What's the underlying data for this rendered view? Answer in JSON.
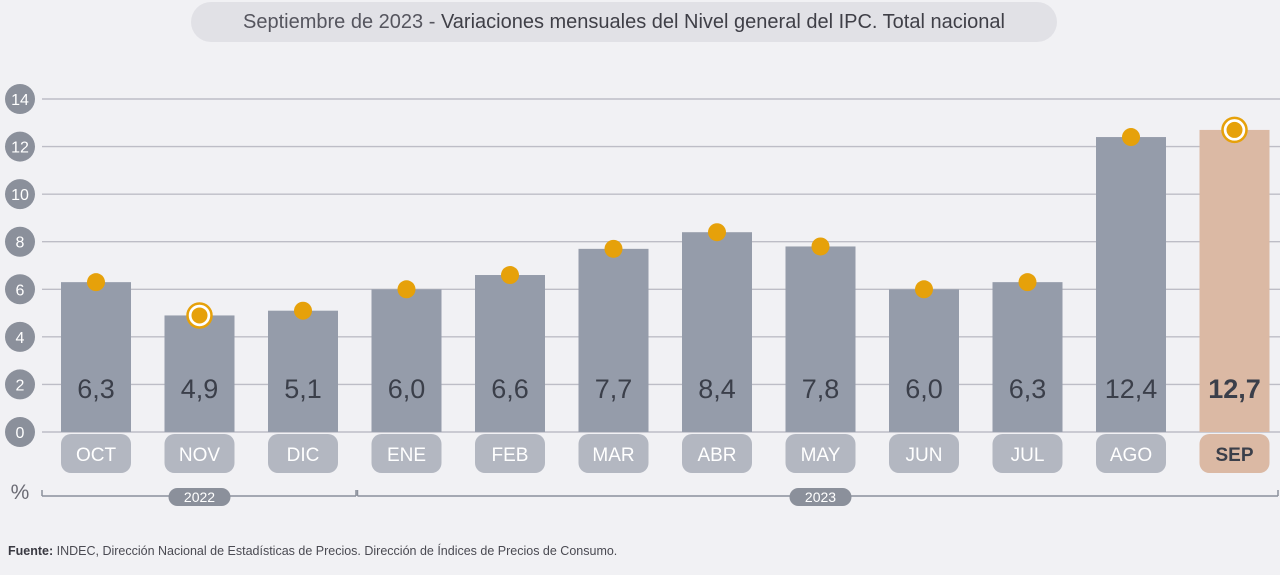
{
  "header": {
    "date_label": "Septiembre de 2023",
    "separator": " - ",
    "title": "Variaciones mensuales del Nivel general del IPC. Total nacional"
  },
  "chart_data": {
    "type": "bar",
    "categories": [
      "OCT",
      "NOV",
      "DIC",
      "ENE",
      "FEB",
      "MAR",
      "ABR",
      "MAY",
      "JUN",
      "JUL",
      "AGO",
      "SEP"
    ],
    "values": [
      6.3,
      4.9,
      5.1,
      6.0,
      6.6,
      7.7,
      8.4,
      7.8,
      6.0,
      6.3,
      12.4,
      12.7
    ],
    "value_labels": [
      "6,3",
      "4,9",
      "5,1",
      "6,0",
      "6,6",
      "7,7",
      "8,4",
      "7,8",
      "6,0",
      "6,3",
      "12,4",
      "12,7"
    ],
    "highlight_index": 11,
    "ring_marker_indices": [
      1,
      11
    ],
    "ylim": [
      0,
      14
    ],
    "yticks": [
      0,
      2,
      4,
      6,
      8,
      10,
      12,
      14
    ],
    "ylabel": "%",
    "grid": true,
    "year_groups": [
      {
        "label": "2022",
        "from": 0,
        "to": 2
      },
      {
        "label": "2023",
        "from": 3,
        "to": 11
      }
    ],
    "colors": {
      "bar": "#959caa",
      "bar_highlight": "#dbb9a4",
      "marker": "#e6a10a",
      "category_pill": "#b3b7c1",
      "category_pill_highlight": "#dbb9a4",
      "axis_badge": "#8b909b",
      "gridline": "#bdbdc6",
      "value_text": "#3b3f4a"
    }
  },
  "source": {
    "label": "Fuente:",
    "text": " INDEC, Dirección Nacional de Estadísticas de Precios. Dirección de Índices de Precios de Consumo."
  }
}
